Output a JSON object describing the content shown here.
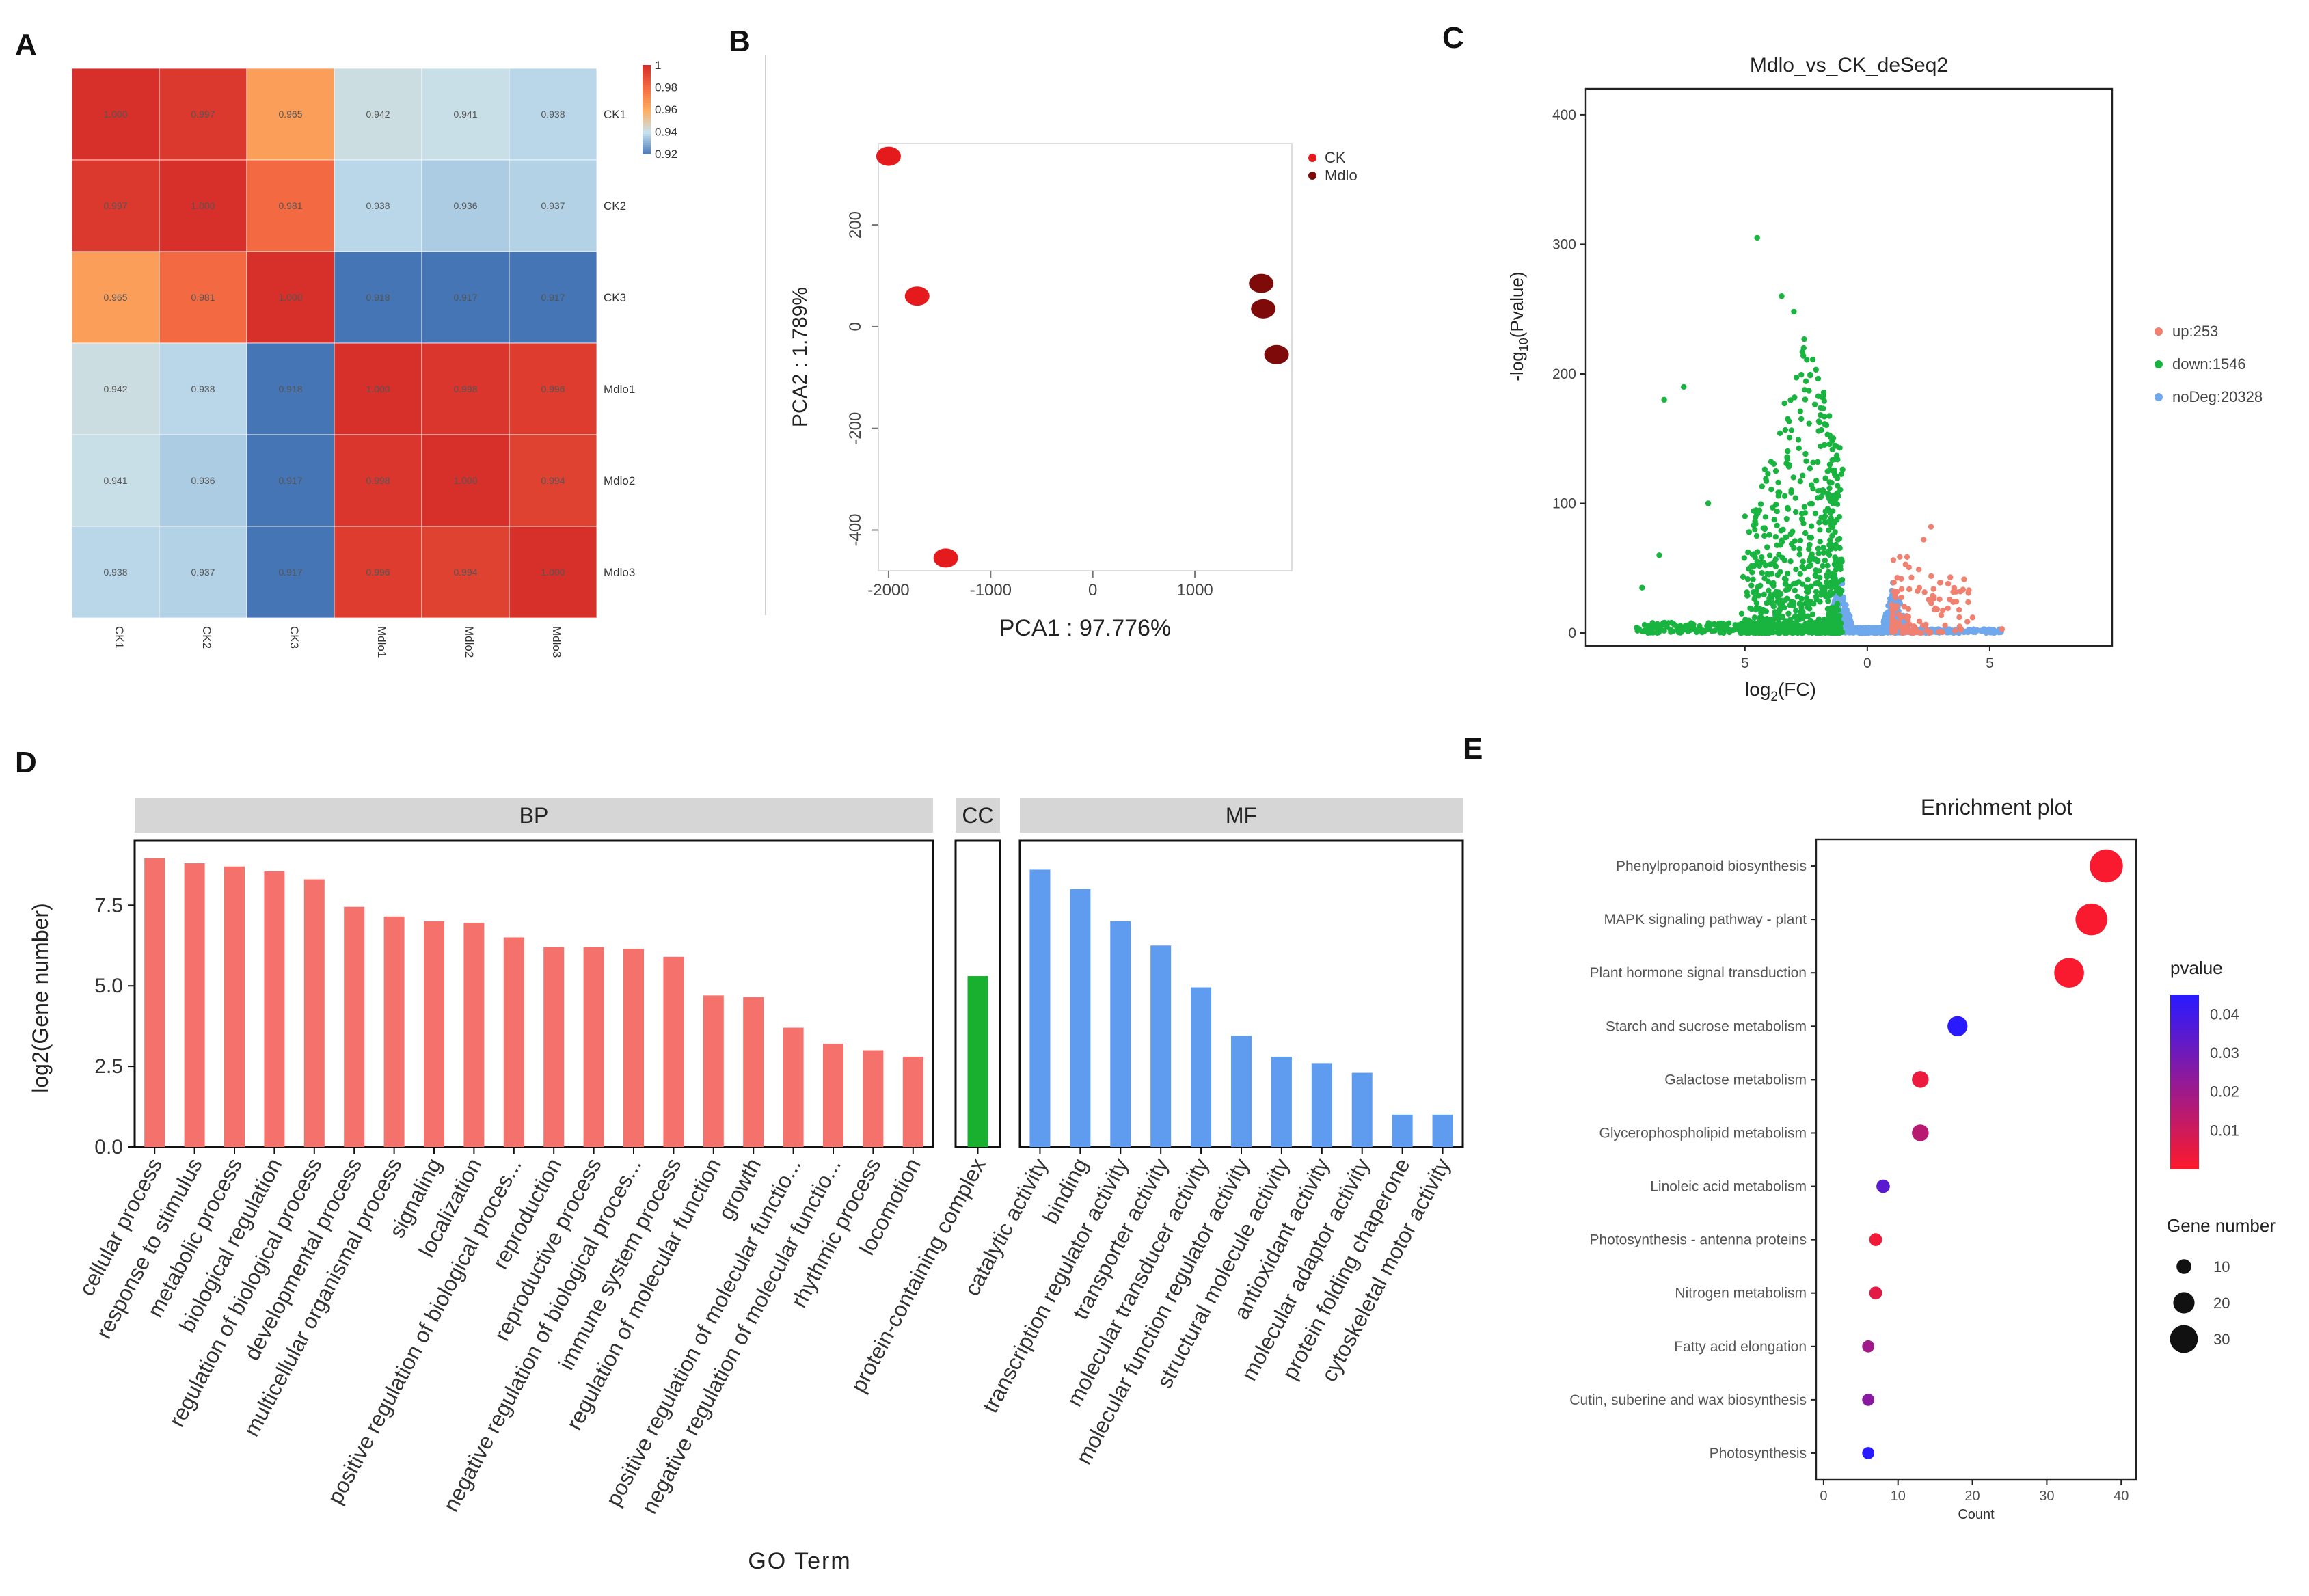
{
  "panels": {
    "A": "A",
    "B": "B",
    "C": "C",
    "D": "D",
    "E": "E"
  },
  "colors": {
    "heat_high": "#d7302a",
    "heat_low": "#4575b4",
    "ck": "#e41a1c",
    "mdlo": "#7f0a0a",
    "up": "#f08070",
    "down": "#19b440",
    "nodeg": "#6fa8ec",
    "bp": "#f4726b",
    "cc": "#19b030",
    "mf": "#5f9cf0"
  },
  "chart_data": [
    {
      "id": "A",
      "type": "heatmap",
      "rows": [
        "CK1",
        "CK2",
        "CK3",
        "Mdlo1",
        "Mdlo2",
        "Mdlo3"
      ],
      "cols": [
        "CK1",
        "CK2",
        "CK3",
        "Mdlo1",
        "Mdlo2",
        "Mdlo3"
      ],
      "values": [
        [
          1.0,
          0.997,
          0.965,
          0.942,
          0.941,
          0.938
        ],
        [
          0.997,
          1.0,
          0.981,
          0.938,
          0.936,
          0.937
        ],
        [
          0.965,
          0.981,
          1.0,
          0.918,
          0.917,
          0.917
        ],
        [
          0.942,
          0.938,
          0.918,
          1.0,
          0.998,
          0.996
        ],
        [
          0.941,
          0.936,
          0.917,
          0.998,
          1.0,
          0.994
        ],
        [
          0.938,
          0.937,
          0.917,
          0.996,
          0.994,
          1.0
        ]
      ],
      "value_labels": [
        [
          "1.000",
          "0.997",
          "0.965",
          "0.942",
          "0.941",
          "0.938"
        ],
        [
          "0.997",
          "1.000",
          "0.981",
          "0.938",
          "0.936",
          "0.937"
        ],
        [
          "0.965",
          "0.981",
          "1.000",
          "0.918",
          "0.917",
          "0.917"
        ],
        [
          "0.942",
          "0.938",
          "0.918",
          "1.000",
          "0.998",
          "0.996"
        ],
        [
          "0.941",
          "0.936",
          "0.917",
          "0.998",
          "1.000",
          "0.994"
        ],
        [
          "0.938",
          "0.937",
          "0.917",
          "0.996",
          "0.994",
          "1.000"
        ]
      ],
      "colorbar": {
        "min": 0.92,
        "max": 1.0,
        "ticks": [
          "1",
          "0.98",
          "0.96",
          "0.94",
          "0.92"
        ]
      }
    },
    {
      "id": "B",
      "type": "scatter",
      "xlabel": "PCA1 : 97.776%",
      "ylabel": "PCA2 : 1.789%",
      "xlim": [
        -2100,
        1950
      ],
      "ylim": [
        -480,
        360
      ],
      "xticks": [
        -2000,
        -1000,
        0,
        1000
      ],
      "xtick_labels": [
        "-2000",
        "-1000",
        "0",
        "1000"
      ],
      "yticks": [
        -400,
        -200,
        0,
        200
      ],
      "ytick_labels": [
        "-400",
        "-200",
        "0",
        "200"
      ],
      "legend_position": "top-right",
      "series": [
        {
          "name": "CK",
          "color": "#e41a1c",
          "points": [
            [
              -2000,
              335
            ],
            [
              -1720,
              60
            ],
            [
              -1440,
              -455
            ]
          ]
        },
        {
          "name": "Mdlo",
          "color": "#7f0a0a",
          "points": [
            [
              1650,
              85
            ],
            [
              1670,
              35
            ],
            [
              1800,
              -55
            ]
          ]
        }
      ]
    },
    {
      "id": "C",
      "type": "scatter",
      "title": "Mdlo_vs_CK_deSeq2",
      "xlabel_main": "log",
      "xlabel_sub": "2",
      "xlabel_tail": "(FC)",
      "ylabel_main": "-log",
      "ylabel_sub": "10",
      "ylabel_tail": "(Pvalue)",
      "xlim": [
        -11.5,
        10
      ],
      "ylim": [
        -10,
        420
      ],
      "xticks": [
        -5,
        0,
        5
      ],
      "xtick_labels": [
        "5",
        "0",
        "5"
      ],
      "yticks": [
        0,
        100,
        200,
        300,
        400
      ],
      "ytick_labels": [
        "0",
        "100",
        "200",
        "300",
        "400"
      ],
      "legend_position": "right",
      "series": [
        {
          "name": "up:253",
          "color": "#f08070",
          "count": 253
        },
        {
          "name": "down:1546",
          "color": "#19b440",
          "count": 1546
        },
        {
          "name": "noDeg:20328",
          "color": "#6fa8ec",
          "count": 20328
        }
      ]
    },
    {
      "id": "D",
      "type": "bar",
      "xlabel": "GO Term",
      "ylabel": "log2(Gene number)",
      "ylim": [
        0,
        9.5
      ],
      "yticks": [
        0,
        2.5,
        5.0,
        7.5
      ],
      "ytick_labels": [
        "0.0",
        "2.5",
        "5.0",
        "7.5"
      ],
      "facets": [
        {
          "name": "BP",
          "color": "#f4726b",
          "categories": [
            "cellular process",
            "response to stimulus",
            "metabolic process",
            "biological regulation",
            "regulation of biological process",
            "developmental process",
            "multicellular organismal process",
            "signaling",
            "localization",
            "positive regulation of biological proces...",
            "reproduction",
            "reproductive process",
            "negative regulation of biological proces...",
            "immune system process",
            "regulation of molecular function",
            "growth",
            "positive regulation of molecular functio...",
            "negative regulation of molecular functio...",
            "rhythmic process",
            "locomotion"
          ],
          "values": [
            8.95,
            8.8,
            8.7,
            8.55,
            8.3,
            7.45,
            7.15,
            7.0,
            6.95,
            6.5,
            6.2,
            6.2,
            6.15,
            5.9,
            4.7,
            4.65,
            3.7,
            3.2,
            3.0,
            2.8
          ]
        },
        {
          "name": "CC",
          "color": "#19b030",
          "categories": [
            "protein-containing complex"
          ],
          "values": [
            5.3
          ]
        },
        {
          "name": "MF",
          "color": "#5f9cf0",
          "categories": [
            "catalytic activity",
            "binding",
            "transcription regulator activity",
            "transporter activity",
            "molecular transducer activity",
            "molecular function regulator activity",
            "structural molecule activity",
            "antioxidant activity",
            "molecular adaptor activity",
            "protein folding chaperone",
            "cytoskeletal motor activity"
          ],
          "values": [
            8.6,
            8.0,
            7.0,
            6.25,
            4.95,
            3.45,
            2.8,
            2.6,
            2.3,
            1.0,
            1.0
          ]
        }
      ]
    },
    {
      "id": "E",
      "type": "scatter",
      "title": "Enrichment plot",
      "xlabel": "Count",
      "xlim": [
        -1,
        42
      ],
      "xticks": [
        0,
        10,
        20,
        30,
        40
      ],
      "xtick_labels": [
        "0",
        "10",
        "20",
        "30",
        "40"
      ],
      "categories": [
        "Phenylpropanoid biosynthesis",
        "MAPK signaling pathway - plant",
        "Plant hormone signal transduction",
        "Starch and sucrose metabolism",
        "Galactose metabolism",
        "Glycerophospholipid metabolism",
        "Linoleic acid metabolism",
        "Photosynthesis - antenna proteins",
        "Nitrogen metabolism",
        "Fatty acid elongation",
        "Cutin, suberine and wax biosynthesis",
        "Photosynthesis"
      ],
      "counts": [
        38,
        36,
        33,
        18,
        13,
        13,
        8,
        7,
        7,
        6,
        6,
        6
      ],
      "pvalues": [
        0.001,
        0.001,
        0.001,
        0.045,
        0.004,
        0.015,
        0.035,
        0.003,
        0.006,
        0.02,
        0.025,
        0.045
      ],
      "colorbar": {
        "title": "pvalue",
        "min": 0.0,
        "max": 0.045,
        "ticks": [
          0.04,
          0.03,
          0.02,
          0.01
        ],
        "tick_labels": [
          "0.04",
          "0.03",
          "0.02",
          "0.01"
        ],
        "low_color": "#ff1a2a",
        "high_color": "#2a1aff"
      },
      "size_legend": {
        "title": "Gene number",
        "values": [
          10,
          20,
          30
        ],
        "labels": [
          "10",
          "20",
          "30"
        ]
      }
    }
  ]
}
